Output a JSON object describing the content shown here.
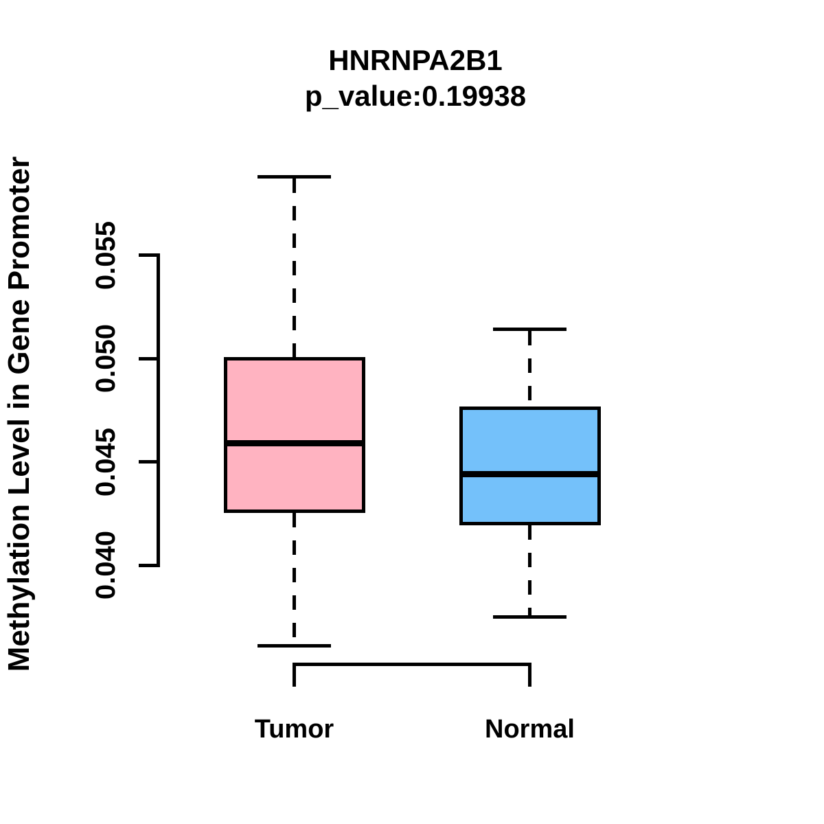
{
  "figure": {
    "title_line1": "HNRNPA2B1",
    "title_line2": "p_value:0.19938",
    "y_axis_label": "Methylation Level in Gene Promoter"
  },
  "chart_data": {
    "type": "boxplot",
    "title": "HNRNPA2B1",
    "subtitle": "p_value:0.19938",
    "xlabel": "",
    "ylabel": "Methylation Level in Gene Promoter",
    "categories": [
      "Tumor",
      "Normal"
    ],
    "y_ticks": [
      0.04,
      0.045,
      0.05,
      0.055
    ],
    "y_tick_labels": [
      "0.040",
      "0.045",
      "0.050",
      "0.055"
    ],
    "ylim": [
      0.0355,
      0.0592
    ],
    "grid": false,
    "legend": false,
    "series": [
      {
        "name": "Tumor",
        "color": "#FFB3C1",
        "whisker_low": 0.0361,
        "q1": 0.0426,
        "median": 0.0459,
        "q3": 0.05,
        "whisker_high": 0.0588,
        "outliers": []
      },
      {
        "name": "Normal",
        "color": "#74C1FA",
        "whisker_low": 0.0375,
        "q1": 0.042,
        "median": 0.0444,
        "q3": 0.0476,
        "whisker_high": 0.0514,
        "outliers": []
      }
    ],
    "colors": {
      "box_border": "#000000",
      "median_line": "#000000",
      "axis": "#000000",
      "text": "#000000",
      "background": "#ffffff"
    }
  }
}
